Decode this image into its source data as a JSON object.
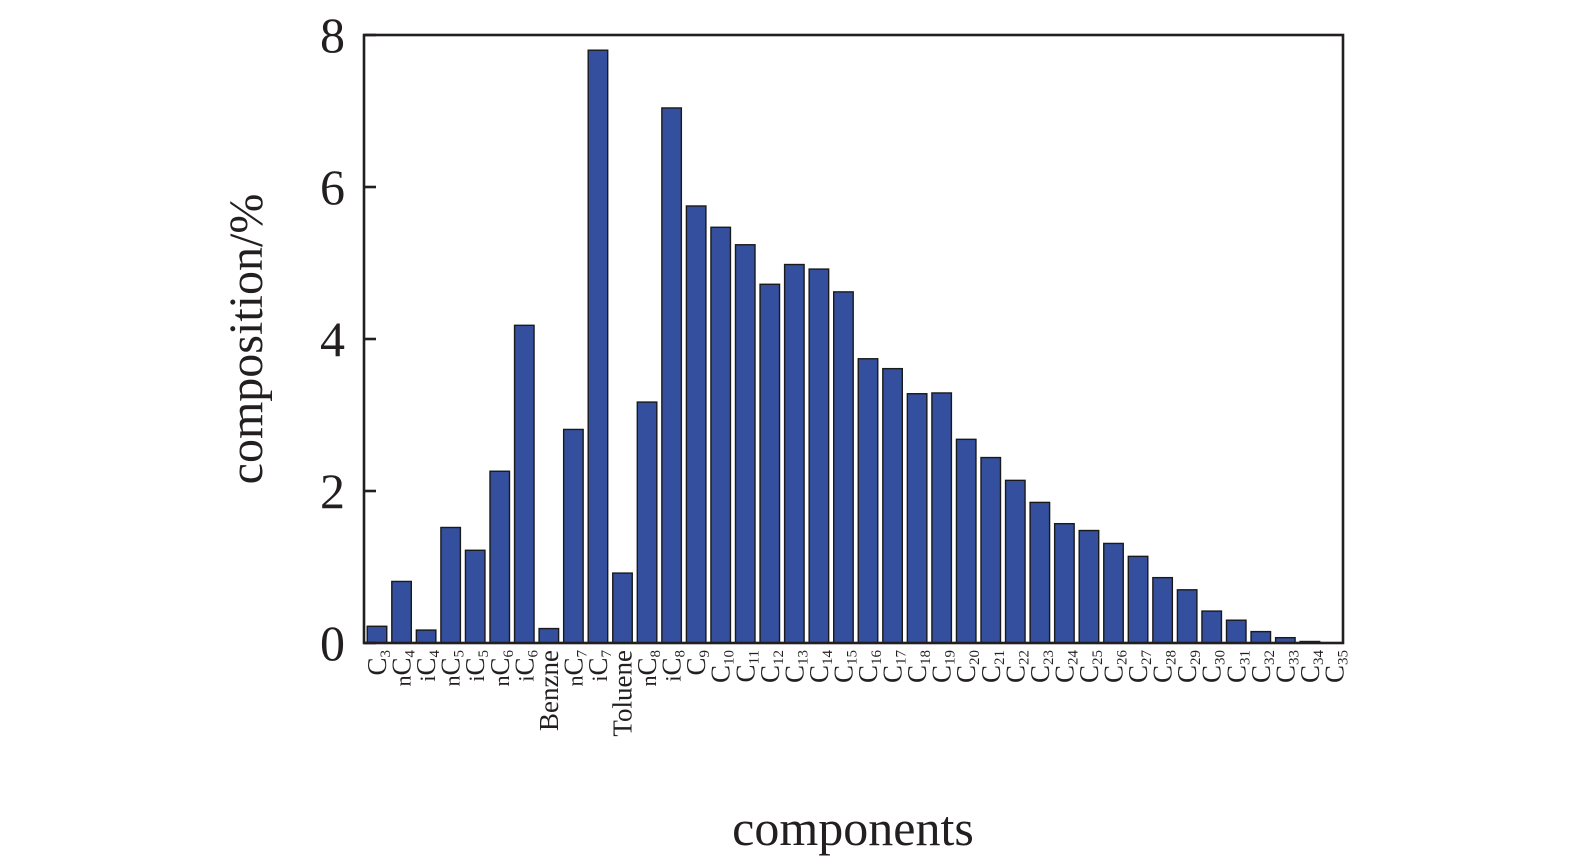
{
  "chart_data": {
    "type": "bar",
    "xlabel": "components",
    "ylabel": "composition/%",
    "ylim": [
      0,
      8
    ],
    "yticks": [
      "0",
      "2",
      "4",
      "6",
      "8"
    ],
    "grid": false,
    "legend": "none",
    "bar_color": "#334f9e",
    "categories": [
      {
        "label": "C",
        "sub": "3",
        "prefix": ""
      },
      {
        "label": "C",
        "sub": "4",
        "prefix": "n"
      },
      {
        "label": "C",
        "sub": "4",
        "prefix": "i"
      },
      {
        "label": "C",
        "sub": "5",
        "prefix": "n"
      },
      {
        "label": "C",
        "sub": "5",
        "prefix": "i"
      },
      {
        "label": "C",
        "sub": "6",
        "prefix": "n"
      },
      {
        "label": "C",
        "sub": "6",
        "prefix": "i"
      },
      {
        "label": "Benzne",
        "sub": "",
        "prefix": ""
      },
      {
        "label": "C",
        "sub": "7",
        "prefix": "n"
      },
      {
        "label": "C",
        "sub": "7",
        "prefix": "i"
      },
      {
        "label": "Toluene",
        "sub": "",
        "prefix": ""
      },
      {
        "label": "C",
        "sub": "8",
        "prefix": "n"
      },
      {
        "label": "C",
        "sub": "8",
        "prefix": "i"
      },
      {
        "label": "C",
        "sub": "9",
        "prefix": ""
      },
      {
        "label": "C",
        "sub": "10",
        "prefix": ""
      },
      {
        "label": "C",
        "sub": "11",
        "prefix": ""
      },
      {
        "label": "C",
        "sub": "12",
        "prefix": ""
      },
      {
        "label": "C",
        "sub": "13",
        "prefix": ""
      },
      {
        "label": "C",
        "sub": "14",
        "prefix": ""
      },
      {
        "label": "C",
        "sub": "15",
        "prefix": ""
      },
      {
        "label": "C",
        "sub": "16",
        "prefix": ""
      },
      {
        "label": "C",
        "sub": "17",
        "prefix": ""
      },
      {
        "label": "C",
        "sub": "18",
        "prefix": ""
      },
      {
        "label": "C",
        "sub": "19",
        "prefix": ""
      },
      {
        "label": "C",
        "sub": "20",
        "prefix": ""
      },
      {
        "label": "C",
        "sub": "21",
        "prefix": ""
      },
      {
        "label": "C",
        "sub": "22",
        "prefix": ""
      },
      {
        "label": "C",
        "sub": "23",
        "prefix": ""
      },
      {
        "label": "C",
        "sub": "24",
        "prefix": ""
      },
      {
        "label": "C",
        "sub": "25",
        "prefix": ""
      },
      {
        "label": "C",
        "sub": "26",
        "prefix": ""
      },
      {
        "label": "C",
        "sub": "27",
        "prefix": ""
      },
      {
        "label": "C",
        "sub": "28",
        "prefix": ""
      },
      {
        "label": "C",
        "sub": "29",
        "prefix": ""
      },
      {
        "label": "C",
        "sub": "30",
        "prefix": ""
      },
      {
        "label": "C",
        "sub": "31",
        "prefix": ""
      },
      {
        "label": "C",
        "sub": "32",
        "prefix": ""
      },
      {
        "label": "C",
        "sub": "33",
        "prefix": ""
      },
      {
        "label": "C",
        "sub": "34",
        "prefix": ""
      },
      {
        "label": "C",
        "sub": "35",
        "prefix": ""
      }
    ],
    "values": [
      0.22,
      0.81,
      0.17,
      1.52,
      1.22,
      2.26,
      4.18,
      0.19,
      2.81,
      7.8,
      0.92,
      3.17,
      7.04,
      5.75,
      5.47,
      5.24,
      4.72,
      4.98,
      4.92,
      4.62,
      3.74,
      3.61,
      3.28,
      3.29,
      2.68,
      2.44,
      2.14,
      1.85,
      1.57,
      1.48,
      1.31,
      1.14,
      0.86,
      0.7,
      0.42,
      0.3,
      0.15,
      0.07,
      0.02,
      0.0
    ]
  }
}
